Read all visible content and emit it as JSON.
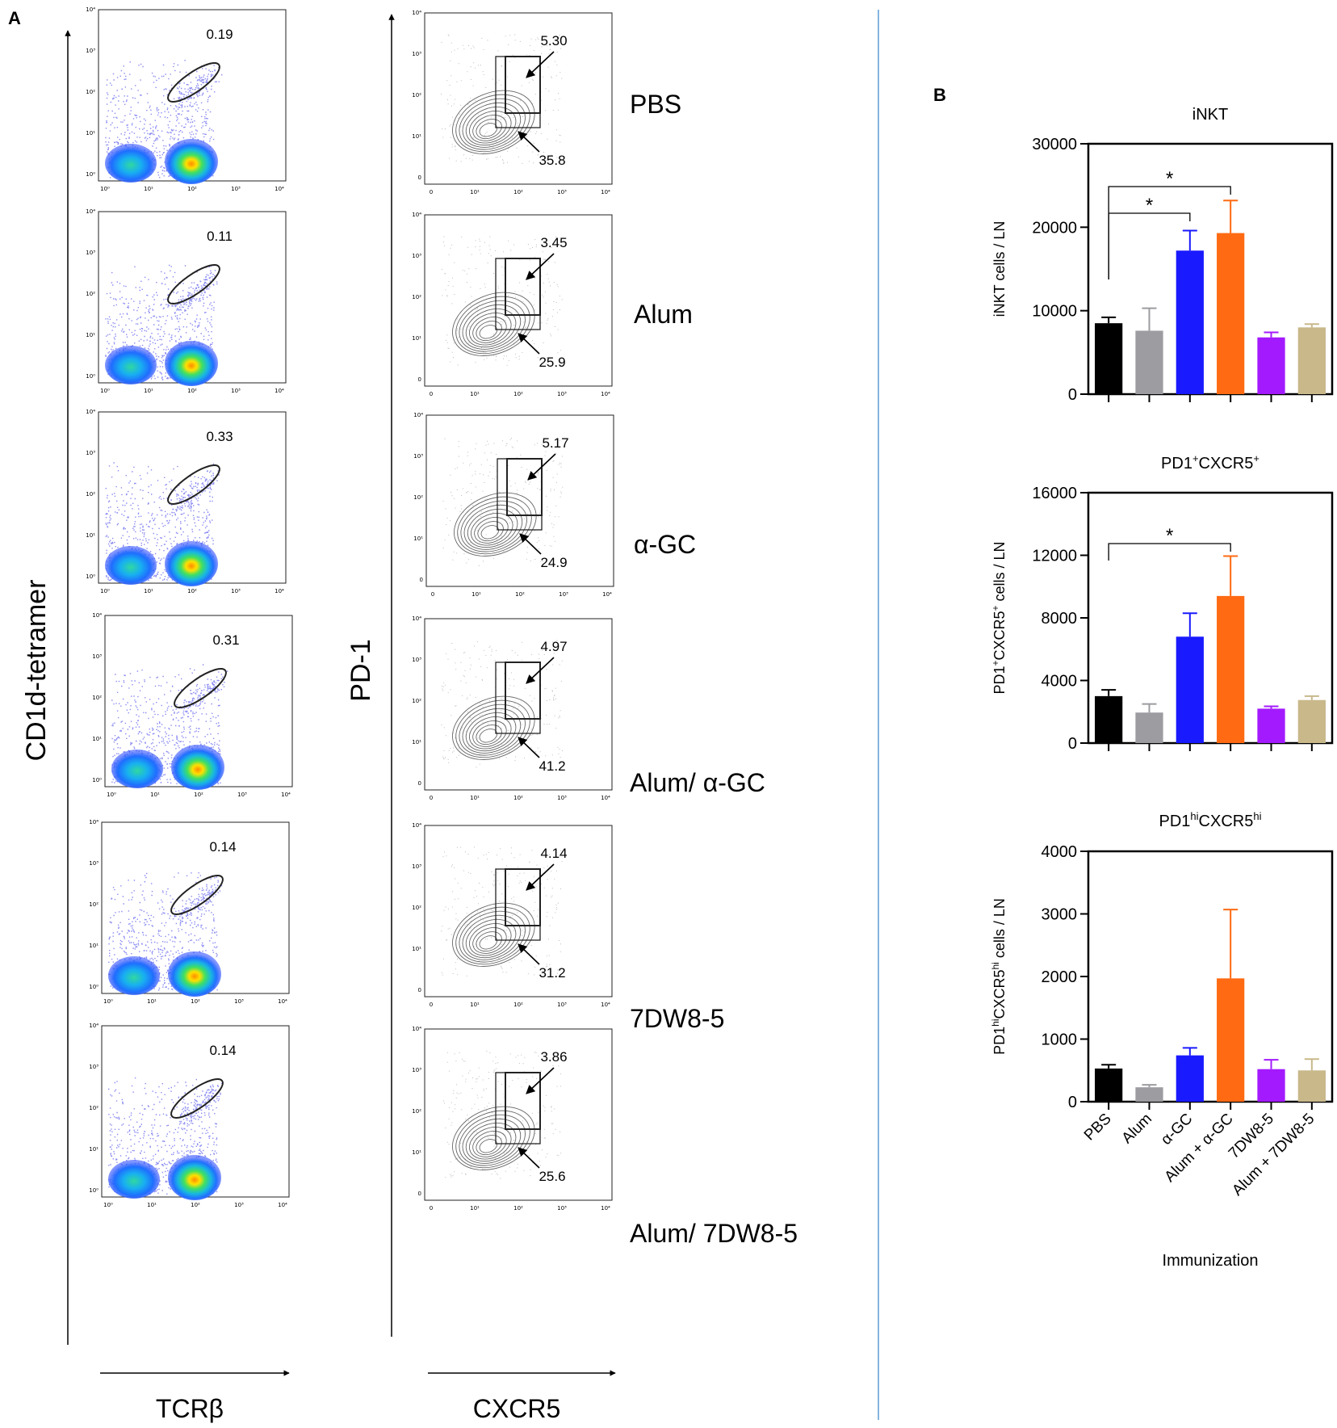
{
  "figure": {
    "panel_a_label": "A",
    "panel_b_label": "B",
    "divider_color": "#5b9bd5"
  },
  "flow": {
    "left_y_label": "CD1d-tetramer",
    "left_x_label": "TCRβ",
    "right_y_label": "PD-1",
    "right_x_label": "CXCR5",
    "tick_labels": [
      "10⁰",
      "10¹",
      "10²",
      "10³",
      "10⁴"
    ],
    "contour_tick_labels": [
      "0",
      "10¹",
      "10²",
      "10³",
      "10⁴"
    ],
    "rows": [
      {
        "group": "PBS",
        "tetramer_pct": "0.19",
        "pd1hi_pct": "5.30",
        "pd1pos_pct": "35.8"
      },
      {
        "group": "Alum",
        "tetramer_pct": "0.11",
        "pd1hi_pct": "3.45",
        "pd1pos_pct": "25.9"
      },
      {
        "group": "α-GC",
        "tetramer_pct": "0.33",
        "pd1hi_pct": "5.17",
        "pd1pos_pct": "24.9"
      },
      {
        "group": "Alum/ α-GC",
        "tetramer_pct": "0.31",
        "pd1hi_pct": "4.97",
        "pd1pos_pct": "41.2"
      },
      {
        "group": "7DW8-5",
        "tetramer_pct": "0.14",
        "pd1hi_pct": "4.14",
        "pd1pos_pct": "31.2"
      },
      {
        "group": "Alum/ 7DW8-5",
        "tetramer_pct": "0.14",
        "pd1hi_pct": "3.86",
        "pd1pos_pct": "25.6"
      }
    ]
  },
  "chart_data": [
    {
      "type": "bar",
      "title": "iNKT",
      "ylabel": "iNKT cells / LN",
      "categories": [
        "PBS",
        "Alum",
        "α-GC",
        "Alum + α-GC",
        "7DW8-5",
        "Alum + 7DW8-5"
      ],
      "values": [
        8500,
        7600,
        17200,
        19300,
        6800,
        8000
      ],
      "errors": [
        700,
        2700,
        2400,
        3900,
        600,
        400
      ],
      "ylim": [
        0,
        30000
      ],
      "yticks": [
        0,
        10000,
        20000,
        30000
      ],
      "ytick_labels": [
        "0",
        "10000",
        "20000",
        "30000"
      ],
      "significance": [
        {
          "from": 0,
          "to": 2,
          "label": "*"
        },
        {
          "from": 0,
          "to": 3,
          "label": "*"
        }
      ]
    },
    {
      "type": "bar",
      "title_parts": [
        "PD1",
        "+",
        "CXCR5",
        "+"
      ],
      "ylabel_parts": [
        "PD1",
        "+",
        "CXCR5",
        "+",
        " cells / LN"
      ],
      "categories": [
        "PBS",
        "Alum",
        "α-GC",
        "Alum + α-GC",
        "7DW8-5",
        "Alum + 7DW8-5"
      ],
      "values": [
        3000,
        1950,
        6800,
        9400,
        2200,
        2750
      ],
      "errors": [
        400,
        550,
        1500,
        2550,
        150,
        250
      ],
      "ylim": [
        0,
        16000
      ],
      "yticks": [
        0,
        4000,
        8000,
        12000,
        16000
      ],
      "ytick_labels": [
        "0",
        "4000",
        "8000",
        "12000",
        "16000"
      ],
      "significance": [
        {
          "from": 0,
          "to": 3,
          "label": "*"
        }
      ]
    },
    {
      "type": "bar",
      "title_parts": [
        "PD1",
        "hi",
        "CXCR5",
        "hi"
      ],
      "ylabel_parts": [
        "PD1",
        "hi",
        "CXCR5",
        "hi",
        " cells / LN"
      ],
      "xlabel": "Immunization",
      "categories": [
        "PBS",
        "Alum",
        "α-GC",
        "Alum + α-GC",
        "7DW8-5",
        "Alum + 7DW8-5"
      ],
      "values": [
        530,
        230,
        740,
        1970,
        520,
        500
      ],
      "errors": [
        60,
        40,
        120,
        1100,
        150,
        180
      ],
      "ylim": [
        0,
        4000
      ],
      "yticks": [
        0,
        1000,
        2000,
        3000,
        4000
      ],
      "ytick_labels": [
        "0",
        "1000",
        "2000",
        "3000",
        "4000"
      ],
      "significance": []
    }
  ],
  "bar_colors": [
    "#000000",
    "#9c9ca1",
    "#1a1aff",
    "#ff6a13",
    "#a31aff",
    "#c8b88a"
  ]
}
